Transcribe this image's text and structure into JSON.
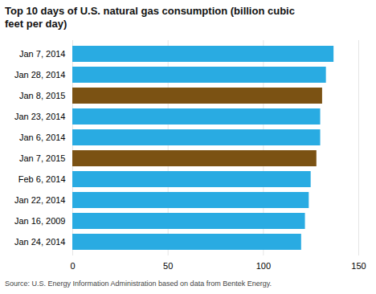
{
  "chart_data": {
    "type": "bar",
    "orientation": "horizontal",
    "title": "Top 10 days of U.S. natural gas consumption (billion cubic\nfeet per day)",
    "categories": [
      "Jan 7, 2014",
      "Jan 28, 2014",
      "Jan 8, 2015",
      "Jan 23, 2014",
      "Jan 6, 2014",
      "Jan 7, 2015",
      "Feb 6, 2014",
      "Jan 22, 2014",
      "Jan 16, 2009",
      "Jan 24, 2014"
    ],
    "values": [
      137,
      133,
      131,
      130,
      130,
      128,
      125,
      124,
      122,
      120
    ],
    "colors": [
      "#29ABE2",
      "#29ABE2",
      "#7B5213",
      "#29ABE2",
      "#29ABE2",
      "#7B5213",
      "#29ABE2",
      "#29ABE2",
      "#29ABE2",
      "#29ABE2"
    ],
    "xlim": [
      0,
      150
    ],
    "xticks": [
      0,
      50,
      100,
      150
    ],
    "grid": true,
    "source": "Source: U.S. Energy Information Administration based on data from Bentek Energy."
  }
}
